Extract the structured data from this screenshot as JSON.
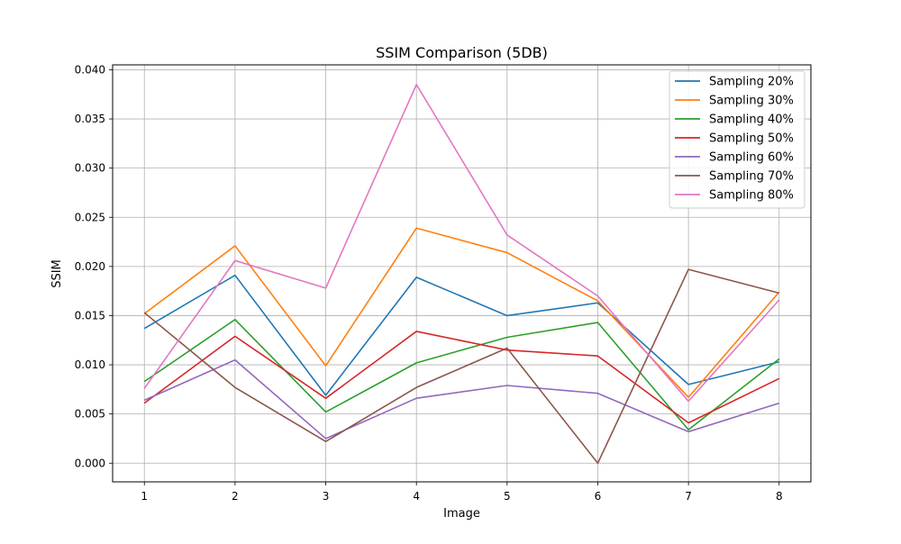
{
  "chart_data": {
    "type": "line",
    "title": "SSIM Comparison (5DB)",
    "xlabel": "Image",
    "ylabel": "SSIM",
    "x": [
      1,
      2,
      3,
      4,
      5,
      6,
      7,
      8
    ],
    "xlim": [
      0.65,
      8.35
    ],
    "ylim": [
      -0.0019,
      0.0405
    ],
    "yticks": [
      0.0,
      0.005,
      0.01,
      0.015,
      0.02,
      0.025,
      0.03,
      0.035,
      0.04
    ],
    "ytick_labels": [
      "0.000",
      "0.005",
      "0.010",
      "0.015",
      "0.020",
      "0.025",
      "0.030",
      "0.035",
      "0.040"
    ],
    "xtick_labels": [
      "1",
      "2",
      "3",
      "4",
      "5",
      "6",
      "7",
      "8"
    ],
    "grid": true,
    "legend_position": "top-right",
    "series": [
      {
        "name": "Sampling 20%",
        "color": "#1f77b4",
        "values": [
          0.0137,
          0.0191,
          0.0069,
          0.0189,
          0.015,
          0.0163,
          0.008,
          0.0103
        ]
      },
      {
        "name": "Sampling 30%",
        "color": "#ff7f0e",
        "values": [
          0.0152,
          0.0221,
          0.0099,
          0.0239,
          0.0214,
          0.0165,
          0.0067,
          0.0174
        ]
      },
      {
        "name": "Sampling 40%",
        "color": "#2ca02c",
        "values": [
          0.0083,
          0.0146,
          0.0052,
          0.0102,
          0.0128,
          0.0143,
          0.0034,
          0.0106
        ]
      },
      {
        "name": "Sampling 50%",
        "color": "#d62728",
        "values": [
          0.0061,
          0.0129,
          0.0066,
          0.0134,
          0.0115,
          0.0109,
          0.0041,
          0.0086
        ]
      },
      {
        "name": "Sampling 60%",
        "color": "#9467bd",
        "values": [
          0.0064,
          0.0105,
          0.0025,
          0.0066,
          0.0079,
          0.0071,
          0.0032,
          0.0061
        ]
      },
      {
        "name": "Sampling 70%",
        "color": "#8c564b",
        "values": [
          0.0153,
          0.0077,
          0.0022,
          0.0077,
          0.0117,
          0.0,
          0.0197,
          0.0173
        ]
      },
      {
        "name": "Sampling 80%",
        "color": "#e377c2",
        "values": [
          0.0076,
          0.0206,
          0.0178,
          0.0385,
          0.0232,
          0.017,
          0.0063,
          0.0166
        ]
      }
    ]
  }
}
